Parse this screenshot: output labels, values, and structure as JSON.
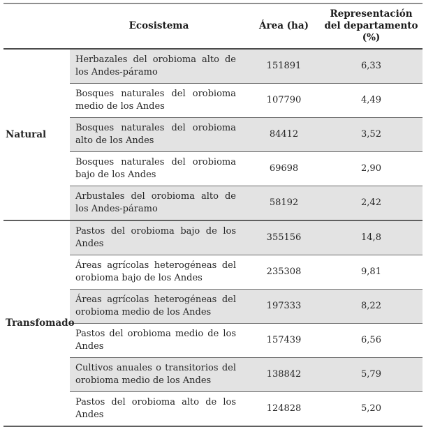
{
  "table": {
    "column_headers": {
      "group": "",
      "ecosystem": "Ecosistema",
      "area": "Área (ha)",
      "representation": "Representación del departamento (%)"
    },
    "groups": [
      {
        "label": "Natural",
        "rows": [
          {
            "ecosystem": "Herbazales del orobioma alto de los Andes-páramo",
            "area_ha": "151891",
            "representation_pct": "6,33"
          },
          {
            "ecosystem": "Bosques naturales del orobioma medio de los Andes",
            "area_ha": "107790",
            "representation_pct": "4,49"
          },
          {
            "ecosystem": "Bosques naturales del orobioma alto de los Andes",
            "area_ha": "84412",
            "representation_pct": "3,52"
          },
          {
            "ecosystem": "Bosques naturales del orobioma bajo de los Andes",
            "area_ha": "69698",
            "representation_pct": "2,90"
          },
          {
            "ecosystem": "Arbustales del orobioma alto de los Andes-páramo",
            "area_ha": "58192",
            "representation_pct": "2,42"
          }
        ]
      },
      {
        "label": "Transfomado",
        "rows": [
          {
            "ecosystem": "Pastos del orobioma bajo de los Andes",
            "area_ha": "355156",
            "representation_pct": "14,8"
          },
          {
            "ecosystem": "Áreas agrícolas heterogéneas del orobioma bajo de los Andes",
            "area_ha": "235308",
            "representation_pct": "9,81"
          },
          {
            "ecosystem": "Áreas agrícolas heterogéneas del orobioma medio de los Andes",
            "area_ha": "197333",
            "representation_pct": "8,22"
          },
          {
            "ecosystem": "Pastos del orobioma medio de los Andes",
            "area_ha": "157439",
            "representation_pct": "6,56"
          },
          {
            "ecosystem": "Cultivos anuales o transitorios del orobioma medio de los Andes",
            "area_ha": "138842",
            "representation_pct": "5,79"
          },
          {
            "ecosystem": "Pastos del orobioma alto de los Andes",
            "area_ha": "124828",
            "representation_pct": "5,20"
          }
        ]
      }
    ]
  },
  "colors": {
    "row_shade": "#e3e3e3",
    "top_rule": "#8f8f8f",
    "header_rule": "#4b4b4b",
    "row_rule": "#6a6a6a",
    "group_rule": "#5f5f5f",
    "text": "#262626"
  }
}
